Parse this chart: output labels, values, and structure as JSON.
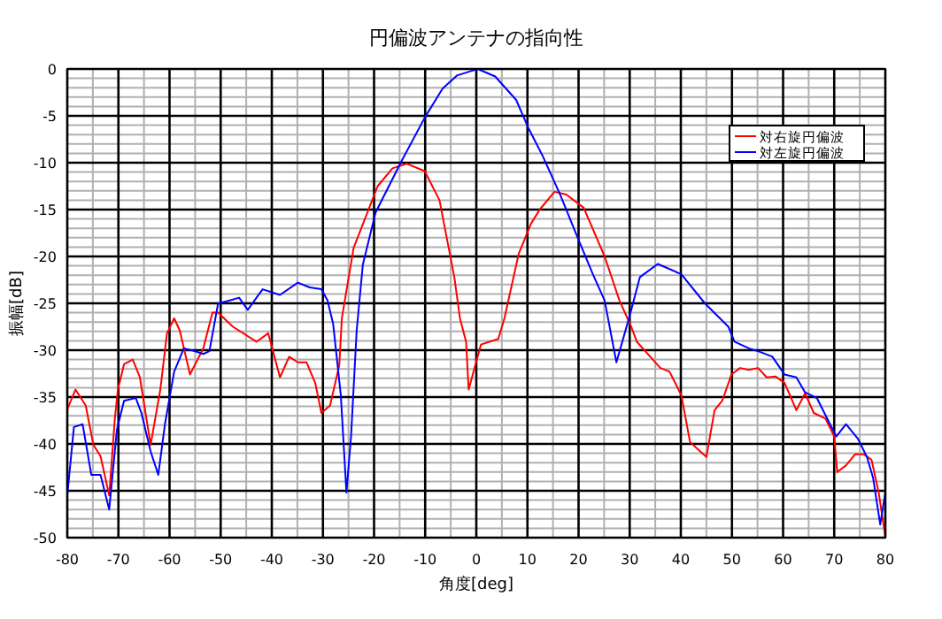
{
  "chart_data": {
    "type": "line",
    "title": "円偏波アンテナの指向性",
    "xlabel": "角度[deg]",
    "ylabel": "振幅[dB]",
    "xlim": [
      -80,
      80
    ],
    "ylim": [
      -50,
      0
    ],
    "xticks": [
      -80,
      -70,
      -60,
      -50,
      -40,
      -30,
      -20,
      -10,
      0,
      10,
      20,
      30,
      40,
      50,
      60,
      70,
      80
    ],
    "yticks": [
      -50,
      -45,
      -40,
      -35,
      -30,
      -25,
      -20,
      -15,
      -10,
      -5,
      0
    ],
    "grid": true,
    "legend": "top right",
    "marker": "none",
    "line_style": "solid",
    "series": [
      {
        "name": "対右旋円偏波",
        "color": "#ff0000",
        "x": [
          -80,
          -78.4,
          -76.4,
          -74.9,
          -73.5,
          -71.8,
          -70.7,
          -70.1,
          -68.9,
          -67.2,
          -65.8,
          -63.7,
          -61.8,
          -60.5,
          -59.1,
          -58,
          -56,
          -53.4,
          -51.6,
          -50.5,
          -47.6,
          -43,
          -40.7,
          -38.4,
          -36.6,
          -34.9,
          -33.2,
          -31.5,
          -30.3,
          -28.6,
          -26.8,
          -26.3,
          -24,
          -19.3,
          -16.4,
          -13.6,
          -10.1,
          -7.2,
          -4.3,
          -3.2,
          -2,
          -1.5,
          0.9,
          4.3,
          5.5,
          8.3,
          10.7,
          12.4,
          15.3,
          17.6,
          21,
          25.1,
          28,
          30.3,
          31.4,
          36,
          37.8,
          40.1,
          41.8,
          45,
          46.6,
          48.1,
          49.9,
          51.6,
          53.3,
          55.1,
          56.8,
          58.5,
          60.3,
          62.6,
          64.3,
          66,
          68.3,
          70,
          70.6,
          72.3,
          74.1,
          75.8,
          77.3,
          78.7,
          80
        ],
        "values": [
          -36.3,
          -34.2,
          -35.9,
          -40.1,
          -41.3,
          -45.5,
          -37.3,
          -34.2,
          -31.5,
          -31,
          -32.9,
          -40.1,
          -34.2,
          -28.2,
          -26.6,
          -27.9,
          -32.6,
          -29.8,
          -26,
          -26,
          -27.5,
          -29.1,
          -28.2,
          -32.9,
          -30.7,
          -31.3,
          -31.3,
          -33.5,
          -36.7,
          -35.9,
          -31.6,
          -26.6,
          -19.1,
          -12.5,
          -10.6,
          -10.1,
          -10.9,
          -14,
          -22.2,
          -26.6,
          -29.1,
          -34.2,
          -29.4,
          -28.8,
          -26.6,
          -19.7,
          -16.5,
          -15,
          -13.1,
          -13.4,
          -14.8,
          -20,
          -24.7,
          -27.5,
          -29.1,
          -31.9,
          -32.3,
          -34.8,
          -39.8,
          -41.4,
          -36.4,
          -35.4,
          -32.6,
          -31.9,
          -32.1,
          -31.9,
          -32.9,
          -32.8,
          -33.5,
          -36.4,
          -34.6,
          -36.7,
          -37.3,
          -39.2,
          -43,
          -42.3,
          -41.1,
          -41.1,
          -41.7,
          -45.2,
          -49.9
        ]
      },
      {
        "name": "対左旋円偏波",
        "color": "#0000ff",
        "x": [
          -80,
          -78.7,
          -77,
          -75.3,
          -73.5,
          -71.8,
          -70.3,
          -68.9,
          -66.6,
          -65.5,
          -63.7,
          -62.2,
          -60.9,
          -59.1,
          -57.2,
          -55.1,
          -53.4,
          -52.2,
          -50.5,
          -48.2,
          -46.4,
          -44.7,
          -41.8,
          -38.4,
          -34.9,
          -32.6,
          -30.3,
          -29.1,
          -28,
          -26.5,
          -25.4,
          -24.5,
          -23.4,
          -22.2,
          -19.7,
          -14.7,
          -10.1,
          -6.6,
          -3.8,
          -0.9,
          0.3,
          3.7,
          7.8,
          10.1,
          13,
          16.4,
          19.9,
          22.8,
          25.1,
          27.4,
          29.7,
          30.3,
          32,
          35.5,
          40.1,
          44.7,
          49.3,
          50.5,
          53.3,
          55.6,
          57.9,
          60.3,
          62.6,
          64.3,
          66.6,
          68.9,
          70.4,
          72.3,
          74.7,
          76.4,
          77.6,
          79,
          80
        ],
        "values": [
          -45.5,
          -38.2,
          -37.9,
          -43.3,
          -43.3,
          -47,
          -38.5,
          -35.4,
          -35.1,
          -36.7,
          -40.8,
          -43.3,
          -37.9,
          -32.3,
          -29.8,
          -30.1,
          -30.4,
          -30.1,
          -25,
          -24.7,
          -24.4,
          -25.7,
          -23.5,
          -24.1,
          -22.8,
          -23.3,
          -23.5,
          -24.7,
          -27.2,
          -34.8,
          -45.2,
          -39.2,
          -27.9,
          -20.9,
          -15.3,
          -9.9,
          -5.2,
          -2.1,
          -0.7,
          -0.2,
          0,
          -0.8,
          -3.3,
          -6.2,
          -9.3,
          -13.4,
          -18.1,
          -21.9,
          -24.7,
          -31.3,
          -26.9,
          -25.7,
          -22.2,
          -20.8,
          -21.9,
          -25,
          -27.5,
          -29.1,
          -29.8,
          -30.2,
          -30.7,
          -32.6,
          -32.9,
          -34.5,
          -35.1,
          -37.6,
          -39.2,
          -37.9,
          -39.5,
          -41.4,
          -43.6,
          -48.6,
          -45.2
        ]
      }
    ]
  }
}
